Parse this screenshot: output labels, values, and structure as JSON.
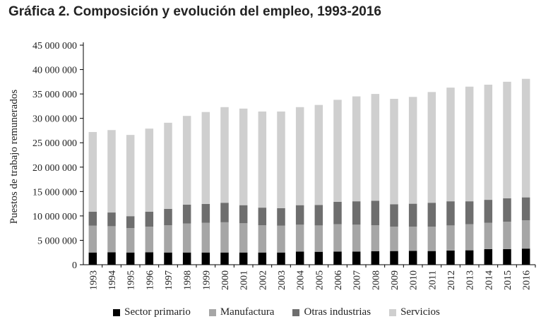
{
  "page_title": "Gráfica 2. Composición y evolución del empleo, 1993-2016",
  "chart_data": {
    "type": "bar",
    "stacked": true,
    "title": "Gráfica 2. Composición y evolución del empleo, 1993-2016",
    "xlabel": "",
    "ylabel": "Puestos de trabajo remunerados",
    "ylim": [
      0,
      45000000
    ],
    "yticks": [
      0,
      5000000,
      10000000,
      15000000,
      20000000,
      25000000,
      30000000,
      35000000,
      40000000,
      45000000
    ],
    "ytick_labels": [
      "0",
      "5 000 000",
      "10 000 000",
      "15 000 000",
      "20 000 000",
      "25 000 000",
      "30 000 000",
      "35 000 000",
      "40 000 000",
      "45 000 000"
    ],
    "categories": [
      "1993",
      "1994",
      "1995",
      "1996",
      "1997",
      "1998",
      "1999",
      "2000",
      "2001",
      "2002",
      "2003",
      "2004",
      "2005",
      "2006",
      "2007",
      "2008",
      "2009",
      "2010",
      "2011",
      "2012",
      "2013",
      "2014",
      "2015",
      "2016"
    ],
    "series": [
      {
        "name": "Sector primario",
        "color": "#000000",
        "values": [
          2500000,
          2550000,
          2500000,
          2550000,
          2500000,
          2500000,
          2500000,
          2500000,
          2500000,
          2500000,
          2500000,
          2700000,
          2650000,
          2700000,
          2700000,
          2750000,
          2800000,
          2850000,
          2800000,
          2900000,
          2950000,
          3200000,
          3200000,
          3300000
        ]
      },
      {
        "name": "Manufactura",
        "color": "#a6a6a6",
        "values": [
          5500000,
          5350000,
          5000000,
          5250000,
          5600000,
          5950000,
          6100000,
          6200000,
          6000000,
          5600000,
          5500000,
          5500000,
          5400000,
          5600000,
          5500000,
          5350000,
          5000000,
          4950000,
          5000000,
          5150000,
          5350000,
          5400000,
          5600000,
          5800000
        ]
      },
      {
        "name": "Otras industrias",
        "color": "#6e6e6e",
        "values": [
          2850000,
          2800000,
          2450000,
          3050000,
          3350000,
          3850000,
          3850000,
          4000000,
          3700000,
          3600000,
          3600000,
          4000000,
          4200000,
          4600000,
          4800000,
          5000000,
          4600000,
          4700000,
          4900000,
          4950000,
          4700000,
          4700000,
          4800000,
          4700000
        ]
      },
      {
        "name": "Servicios",
        "color": "#cfcfcf",
        "values": [
          16350000,
          16900000,
          16650000,
          17050000,
          17650000,
          18200000,
          18850000,
          19600000,
          19800000,
          19700000,
          19800000,
          20100000,
          20500000,
          20900000,
          21500000,
          21900000,
          21600000,
          21900000,
          22700000,
          23300000,
          23500000,
          23600000,
          23900000,
          24300000
        ]
      }
    ],
    "legend_position": "bottom"
  }
}
